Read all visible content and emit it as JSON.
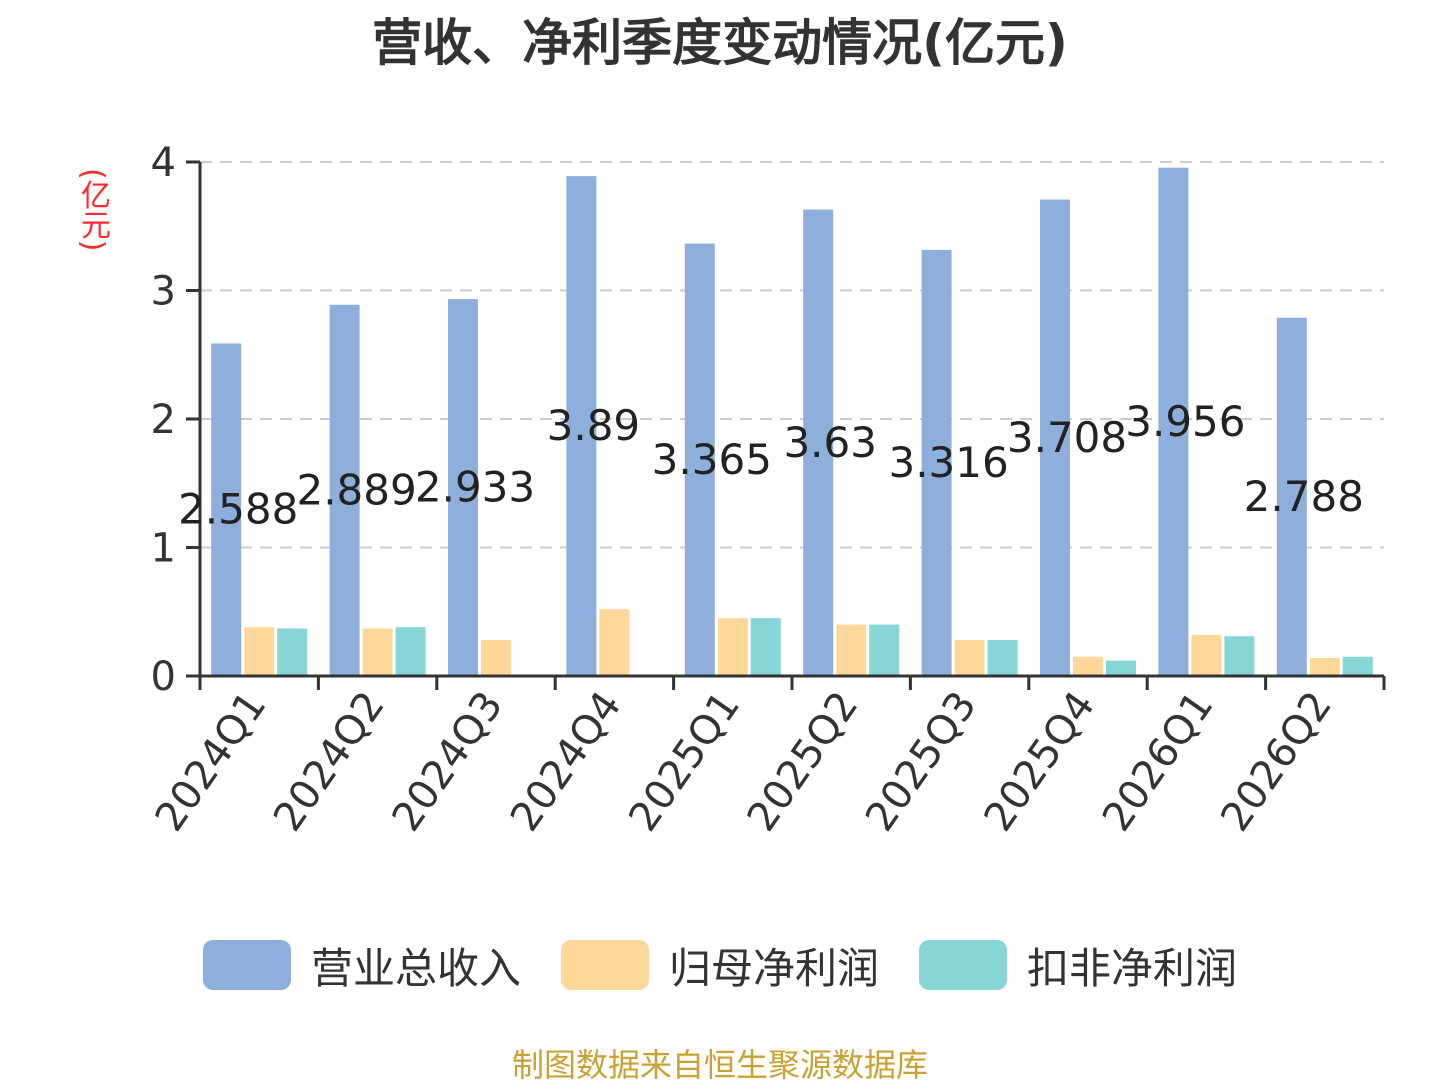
{
  "title": "营收、净利季度变动情况(亿元)",
  "unit_label": "(亿元)",
  "source_note": "制图数据来自恒生聚源数据库",
  "legend": [
    {
      "label": "营业总收入",
      "color": "#8eaedc"
    },
    {
      "label": "归母净利润",
      "color": "#fdd89a"
    },
    {
      "label": "扣非净利润",
      "color": "#86d6d8"
    }
  ],
  "chart_data": {
    "type": "bar",
    "title": "营收、净利季度变动情况(亿元)",
    "ylabel": "(亿元)",
    "xlabel": "",
    "ylim": [
      0,
      4
    ],
    "yticks": [
      0,
      1,
      2,
      3,
      4
    ],
    "grid": true,
    "legend_position": "bottom",
    "categories": [
      "2024Q1",
      "2024Q2",
      "2024Q3",
      "2024Q4",
      "2025Q1",
      "2025Q2",
      "2025Q3",
      "2025Q4",
      "2026Q1",
      "2026Q2"
    ],
    "series": [
      {
        "name": "营业总收入",
        "color": "#8eaedc",
        "values": [
          2.588,
          2.889,
          2.933,
          3.89,
          3.365,
          3.63,
          3.316,
          3.708,
          3.956,
          2.788
        ],
        "labeled": true
      },
      {
        "name": "归母净利润",
        "color": "#fdd89a",
        "values": [
          0.38,
          0.37,
          0.28,
          0.52,
          0.45,
          0.4,
          0.28,
          0.15,
          0.32,
          0.14
        ],
        "labeled": false
      },
      {
        "name": "扣非净利润",
        "color": "#86d6d8",
        "values": [
          0.37,
          0.38,
          0,
          0,
          0.45,
          0.4,
          0.28,
          0.12,
          0.31,
          0.15
        ],
        "labeled": false
      }
    ],
    "data_labels": [
      "2.588",
      "2.889",
      "2.933",
      "3.89",
      "3.365",
      "3.63",
      "3.316",
      "3.708",
      "3.956",
      "2.788"
    ]
  }
}
